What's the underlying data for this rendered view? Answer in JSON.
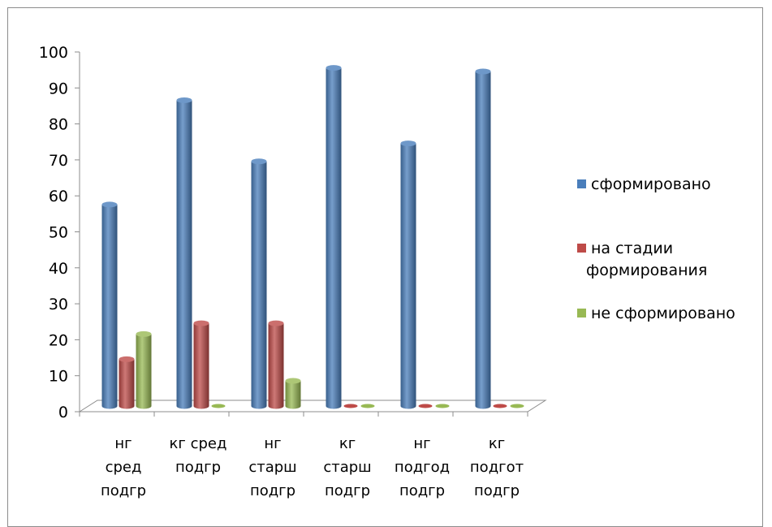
{
  "chart_data": {
    "type": "bar",
    "categories": [
      [
        "нг",
        "сред",
        "подгр"
      ],
      [
        "кг сред",
        "подгр"
      ],
      [
        "нг",
        "старш",
        "подгр"
      ],
      [
        "кг",
        "старш",
        "подгр"
      ],
      [
        "нг",
        "подгод",
        "подгр"
      ],
      [
        "кг",
        "подгот",
        "подгр"
      ]
    ],
    "series": [
      {
        "name": "сформировано",
        "color": "#4a7ebb",
        "values": [
          56,
          85,
          68,
          94,
          73,
          93
        ]
      },
      {
        "name": [
          "на стадии",
          "формирования"
        ],
        "color": "#be4b48",
        "values": [
          13,
          23,
          23,
          0,
          0,
          0
        ]
      },
      {
        "name": "не сформировано",
        "color": "#98b954",
        "values": [
          20,
          0,
          7,
          0,
          0,
          0
        ]
      }
    ],
    "ylim": [
      0,
      100
    ],
    "yticks": [
      0,
      10,
      20,
      30,
      40,
      50,
      60,
      70,
      80,
      90,
      100
    ],
    "title": "",
    "xlabel": "",
    "ylabel": "",
    "grid": false,
    "legend": "right",
    "style": "3d-cylinder"
  }
}
